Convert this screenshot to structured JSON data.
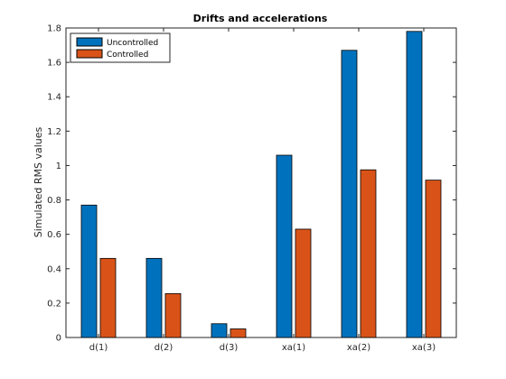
{
  "chart_data": {
    "type": "bar",
    "title": "Drifts and accelerations",
    "xlabel": "",
    "ylabel": "Simulated RMS values",
    "categories": [
      "d(1)",
      "d(2)",
      "d(3)",
      "xa(1)",
      "xa(2)",
      "xa(3)"
    ],
    "series": [
      {
        "name": "Uncontrolled",
        "color": "#0072BD",
        "values": [
          0.77,
          0.46,
          0.08,
          1.06,
          1.67,
          1.78
        ]
      },
      {
        "name": "Controlled",
        "color": "#D95319",
        "values": [
          0.46,
          0.255,
          0.05,
          0.63,
          0.975,
          0.915
        ]
      }
    ],
    "ylim": [
      0,
      1.8
    ],
    "yticks": [
      "0",
      "0.2",
      "0.4",
      "0.6",
      "0.8",
      "1",
      "1.2",
      "1.4",
      "1.6",
      "1.8"
    ],
    "grid": false,
    "legend_position": "top-left"
  }
}
